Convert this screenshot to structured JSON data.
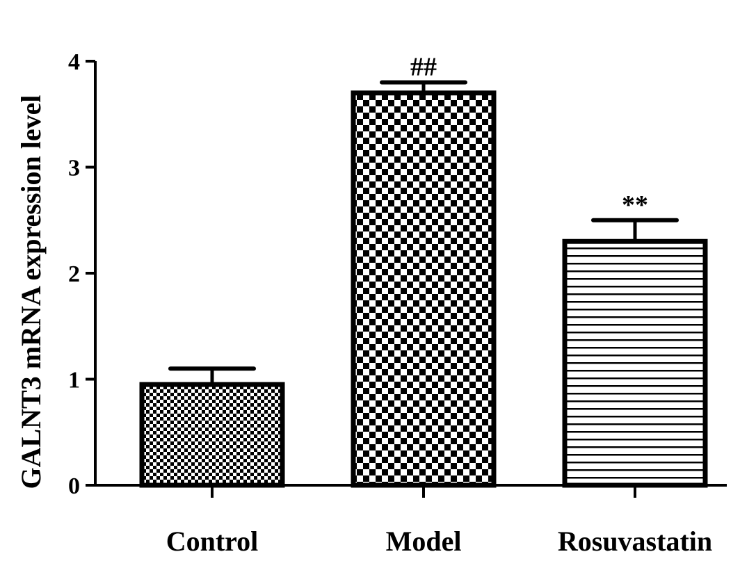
{
  "chart_data": {
    "type": "bar",
    "title": "",
    "xlabel": "",
    "ylabel": "GALNT3 mRNA expression level",
    "categories": [
      "Control",
      "Model",
      "Rosuvastatin"
    ],
    "values": [
      0.95,
      3.7,
      2.3
    ],
    "errors": [
      0.15,
      0.1,
      0.2
    ],
    "annotations": [
      "",
      "##",
      "**"
    ],
    "yticks": [
      "0",
      "1",
      "2",
      "3",
      "4"
    ],
    "ylim": [
      0,
      4
    ],
    "grid": false,
    "legend": "none",
    "patterns": [
      "fine-checker",
      "coarse-checker",
      "horizontal-lines"
    ]
  }
}
